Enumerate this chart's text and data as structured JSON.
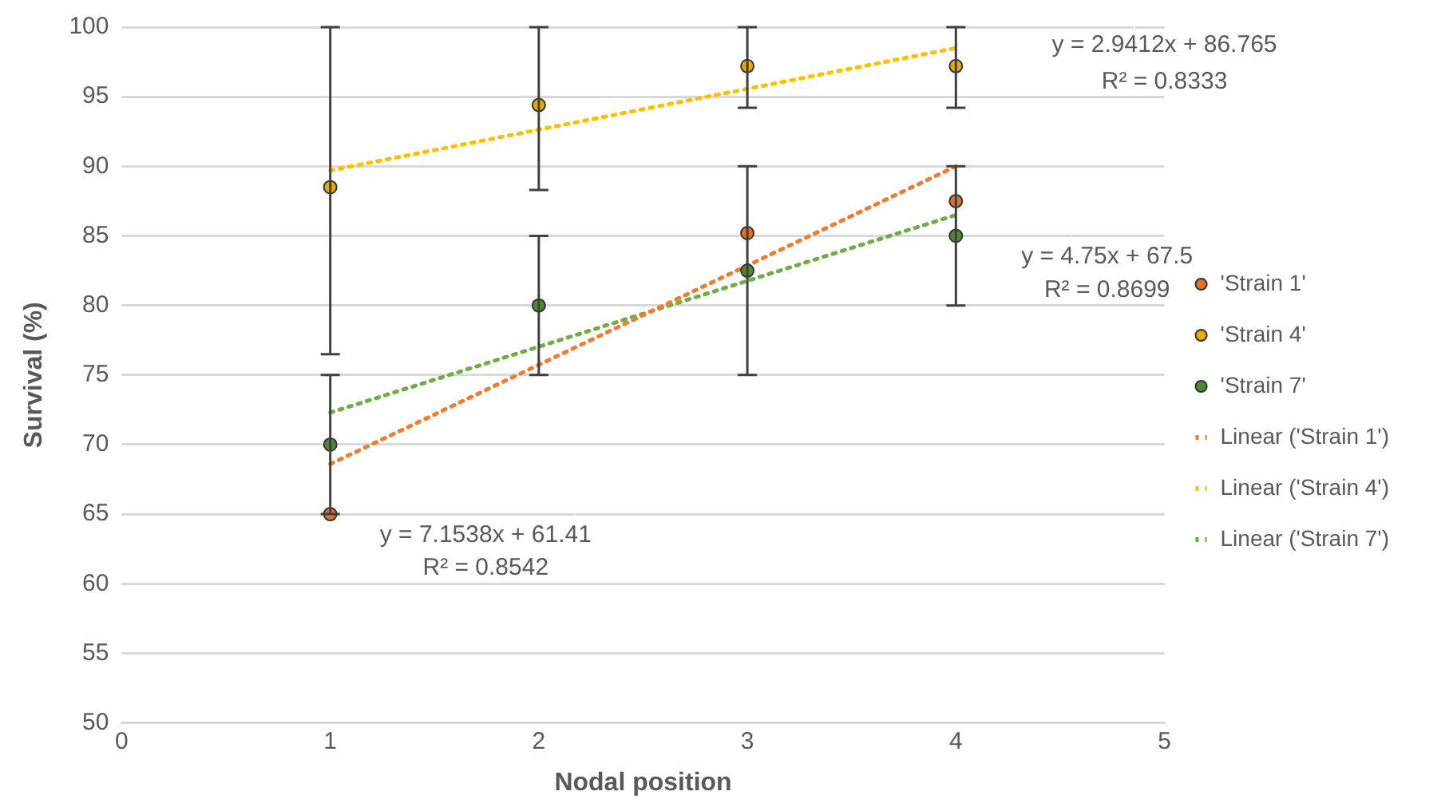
{
  "chart_data": {
    "type": "scatter",
    "xlabel": "Nodal position",
    "ylabel": "Survival (%)",
    "xlim": [
      0,
      5
    ],
    "xticks": [
      0,
      1,
      2,
      3,
      4,
      5
    ],
    "ylim": [
      50,
      100
    ],
    "yticks": [
      50,
      55,
      60,
      65,
      70,
      75,
      80,
      85,
      90,
      95,
      100
    ],
    "grid": "y",
    "legend": "right",
    "marker": "circle",
    "series": [
      {
        "name": "'Strain 1'",
        "color": "#e0702a",
        "x": [
          1,
          2,
          3,
          4
        ],
        "values": [
          65,
          null,
          85.2,
          87.5
        ]
      },
      {
        "name": "'Strain 4'",
        "color": "#e6ac00",
        "x": [
          1,
          2,
          3,
          4
        ],
        "values": [
          88.5,
          94.4,
          97.2,
          97.2
        ],
        "errors": [
          [
            76.5,
            100
          ],
          [
            88.3,
            100
          ],
          [
            94.2,
            100
          ],
          [
            94.2,
            100
          ]
        ]
      },
      {
        "name": "'Strain 7'",
        "color": "#4e8a34",
        "x": [
          1,
          2,
          3,
          4
        ],
        "values": [
          70,
          80,
          82.5,
          85
        ],
        "errors": [
          [
            65,
            75
          ],
          [
            75,
            85
          ],
          [
            75,
            90
          ],
          [
            80,
            90
          ]
        ]
      },
      {
        "name": "Linear ('Strain 1')",
        "type": "line",
        "line_style": "dotted",
        "marker": "none",
        "color": "#ed7d31",
        "x": [
          1,
          4
        ],
        "values": [
          68.6,
          90.0
        ]
      },
      {
        "name": "Linear ('Strain 4')",
        "type": "line",
        "line_style": "dotted",
        "marker": "none",
        "color": "#ffc000",
        "x": [
          1,
          4
        ],
        "values": [
          89.7,
          98.5
        ]
      },
      {
        "name": "Linear ('Strain 7')",
        "type": "line",
        "line_style": "dotted",
        "marker": "none",
        "color": "#70ad47",
        "x": [
          1,
          4
        ],
        "values": [
          72.3,
          86.5
        ]
      }
    ],
    "annotations": [
      "y = 7.1538x + 61.41",
      "R² = 0.8542",
      "y = 2.9412x + 86.765",
      "R² = 0.8333",
      "y = 4.75x + 67.5",
      "R² = 0.8699"
    ]
  }
}
